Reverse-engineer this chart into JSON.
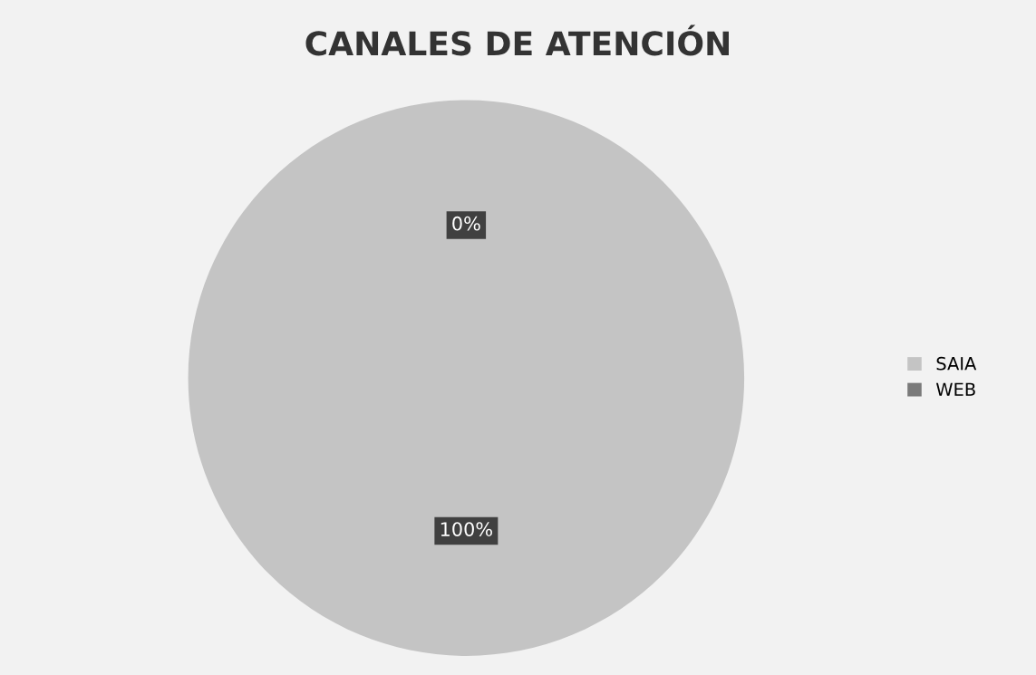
{
  "chart_data": {
    "type": "pie",
    "title": "CANALES DE ATENCIÓN",
    "categories": [
      "SAIA",
      "WEB"
    ],
    "values": [
      100,
      0
    ],
    "colors": [
      "#c4c4c4",
      "#7a7a7a"
    ],
    "value_labels": [
      "100%",
      "0%"
    ],
    "legend": "right"
  }
}
